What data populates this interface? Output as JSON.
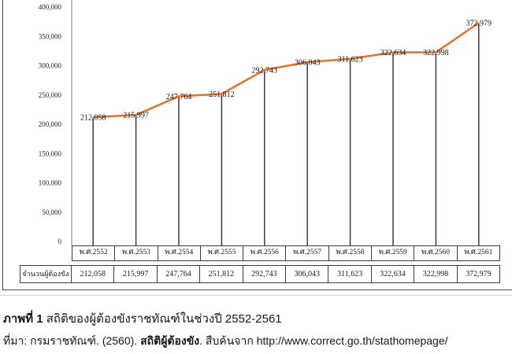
{
  "chart_data": {
    "type": "line",
    "title": "",
    "xlabel": "",
    "ylabel": "",
    "categories": [
      "พ.ศ.2552",
      "พ.ศ.2553",
      "พ.ศ.2554",
      "พ.ศ.2555",
      "พ.ศ.2556",
      "พ.ศ.2557",
      "พ.ศ.2558",
      "พ.ศ.2559",
      "พ.ศ.2560",
      "พ.ศ.2561"
    ],
    "series": [
      {
        "name": "จำนวนผู้ต้องขัง",
        "values": [
          212058,
          215997,
          247764,
          251812,
          292743,
          306043,
          311623,
          322634,
          322998,
          372979
        ]
      }
    ],
    "value_labels": [
      "212,058",
      "215,997",
      "247,764",
      "251,812",
      "292,743",
      "306,043",
      "311,623",
      "322,634",
      "322,998",
      "372,979"
    ],
    "ylim": [
      0,
      400000
    ],
    "ytick_interval": 50000,
    "ytick_labels": [
      "0",
      "50,000",
      "100,000",
      "150,000",
      "200,000",
      "250,000",
      "300,000",
      "350,000",
      "400,000"
    ],
    "grid": false,
    "legend": false,
    "line_color": "#e2762f",
    "drop_line_color": "#3c3c3c",
    "axis_color": "#a6a6a6",
    "border_color": "#4a4a4a"
  },
  "table": {
    "row_label": "จำนวนผู้ต้องขัง",
    "years": [
      "พ.ศ.2552",
      "พ.ศ.2553",
      "พ.ศ.2554",
      "พ.ศ.2555",
      "พ.ศ.2556",
      "พ.ศ.2557",
      "พ.ศ.2558",
      "พ.ศ.2559",
      "พ.ศ.2560",
      "พ.ศ.2561"
    ],
    "values": [
      "212,058",
      "215,997",
      "247,764",
      "251,812",
      "292,743",
      "306,043",
      "311,623",
      "322,634",
      "322,998",
      "372,979"
    ]
  },
  "caption": {
    "figure_label": "ภาพที่ 1",
    "figure_title": " สถิติของผู้ต้องขังราชทัณฑ์ในช่วงปี 2552-2561",
    "source_prefix": "ที่มา: กรมราชทัณฑ์. (2560). ",
    "source_title": "สถิติผู้ต้องขัง",
    "source_suffix": ". สืบค้นจาก http://www.correct.go.th/stathomepage/"
  }
}
